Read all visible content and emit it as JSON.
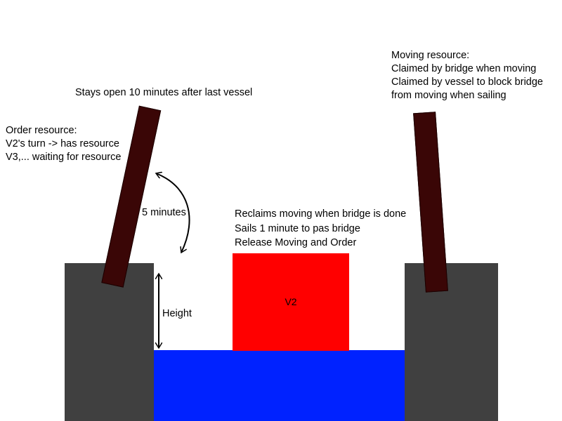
{
  "labels": {
    "stays_open": "Stays open 10 minutes after last vessel",
    "order_resource": [
      "Order resource:",
      "V2's turn -> has resource",
      "V3,... waiting for resource"
    ],
    "moving_resource": [
      "Moving resource:",
      "Claimed by bridge when moving",
      "Claimed by vessel to block bridge",
      "from moving when sailing"
    ],
    "five_minutes": "5 minutes",
    "height": "Height",
    "vessel_notes": [
      "Reclaims moving when bridge is done",
      "Sails 1 minute to pas bridge",
      "Release Moving and Order"
    ],
    "vessel": "V2"
  },
  "colors": {
    "pillar": "#404040",
    "water": "#0022ff",
    "vessel": "#ff0000",
    "bridge_deck": "#3a0606"
  }
}
